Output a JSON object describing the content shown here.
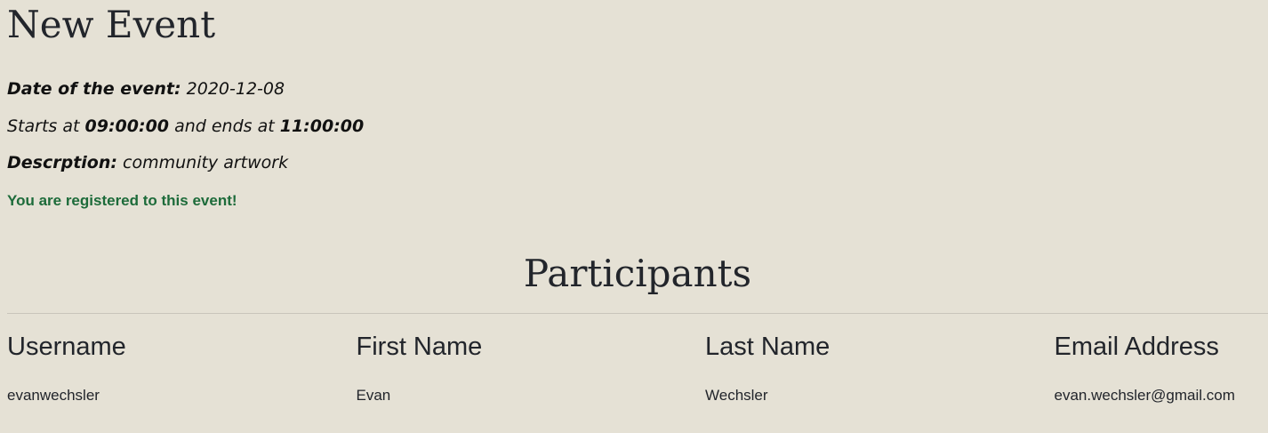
{
  "event": {
    "title": "New Event",
    "date_label": "Date of the event:",
    "date_value": "2020-12-08",
    "starts_prefix": "Starts at",
    "start_time": "09:00:00",
    "ends_middle": "and ends at",
    "end_time": "11:00:00",
    "description_label": "Descrption:",
    "description_value": "community artwork",
    "registered_message": "You are registered to this event!"
  },
  "participants": {
    "title": "Participants",
    "columns": [
      "Username",
      "First Name",
      "Last Name",
      "Email Address"
    ],
    "rows": [
      [
        "evanwechsler",
        "Evan",
        "Wechsler",
        "evan.wechsler@gmail.com"
      ]
    ]
  },
  "colors": {
    "background": "#e5e1d5",
    "success_text": "#1d6b3a"
  }
}
